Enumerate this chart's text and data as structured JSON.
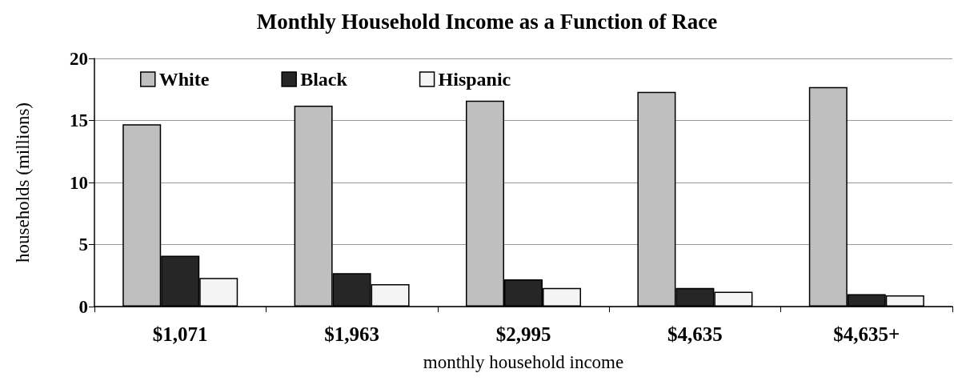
{
  "chart_data": {
    "type": "bar",
    "title": "Monthly Household Income as a Function of Race",
    "xlabel": "monthly household income",
    "ylabel": "households (millions)",
    "categories": [
      "$1,071",
      "$1,963",
      "$2,995",
      "$4,635",
      "$4,635+"
    ],
    "series": [
      {
        "name": "White",
        "color": "#bfbfbf",
        "values": [
          14.7,
          16.2,
          16.6,
          17.3,
          17.7
        ]
      },
      {
        "name": "Black",
        "color": "#262626",
        "values": [
          4.1,
          2.7,
          2.2,
          1.5,
          1.0
        ]
      },
      {
        "name": "Hispanic",
        "color": "#f4f4f4",
        "values": [
          2.3,
          1.8,
          1.5,
          1.2,
          0.9
        ]
      }
    ],
    "ylim": [
      0,
      20
    ],
    "yticks": [
      0,
      5,
      10,
      15,
      20
    ],
    "grid": "y",
    "legend": "top left"
  }
}
